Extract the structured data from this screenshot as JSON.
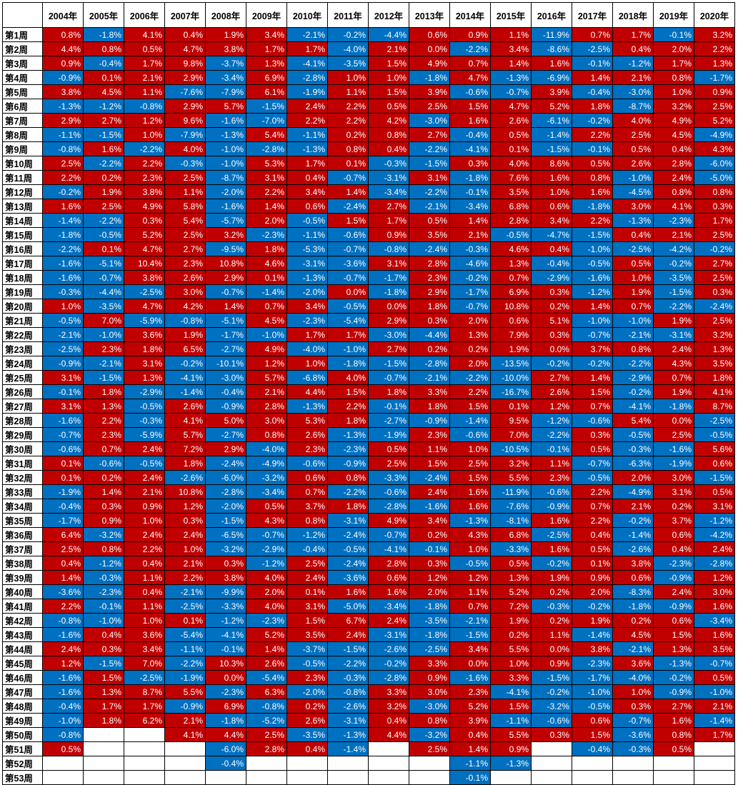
{
  "colors": {
    "positive": "#c00000",
    "negative": "#0070c0",
    "empty": "#ffffff"
  },
  "corner_label": "",
  "years": [
    "2004年",
    "2005年",
    "2006年",
    "2007年",
    "2008年",
    "2009年",
    "2010年",
    "2011年",
    "2012年",
    "2013年",
    "2014年",
    "2015年",
    "2016年",
    "2017年",
    "2018年",
    "2019年",
    "2020年"
  ],
  "weeks": [
    "第1周",
    "第2周",
    "第3周",
    "第4周",
    "第5周",
    "第6周",
    "第7周",
    "第8周",
    "第9周",
    "第10周",
    "第11周",
    "第12周",
    "第13周",
    "第14周",
    "第15周",
    "第16周",
    "第17周",
    "第18周",
    "第19周",
    "第20周",
    "第21周",
    "第22周",
    "第23周",
    "第24周",
    "第25周",
    "第26周",
    "第27周",
    "第28周",
    "第29周",
    "第30周",
    "第31周",
    "第32周",
    "第33周",
    "第34周",
    "第35周",
    "第36周",
    "第37周",
    "第38周",
    "第39周",
    "第40周",
    "第41周",
    "第42周",
    "第43周",
    "第44周",
    "第45周",
    "第46周",
    "第47周",
    "第48周",
    "第49周",
    "第50周",
    "第51周",
    "第52周",
    "第53周"
  ],
  "rows": [
    [
      "0.8%",
      "-1.8%",
      "4.1%",
      "0.4%",
      "1.9%",
      "3.4%",
      "-2.1%",
      "-0.2%",
      "-4.4%",
      "0.6%",
      "0.9%",
      "1.1%",
      "-11.9%",
      "0.7%",
      "1.7%",
      "-0.1%",
      "3.2%"
    ],
    [
      "4.4%",
      "0.8%",
      "0.5%",
      "4.7%",
      "3.8%",
      "1.7%",
      "1.7%",
      "-4.0%",
      "2.1%",
      "0.0%",
      "-2.2%",
      "3.4%",
      "-8.6%",
      "-2.5%",
      "0.4%",
      "2.0%",
      "2.2%"
    ],
    [
      "0.9%",
      "-0.4%",
      "1.7%",
      "9.8%",
      "-3.7%",
      "1.3%",
      "-4.1%",
      "-3.5%",
      "1.5%",
      "4.9%",
      "0.7%",
      "1.4%",
      "1.6%",
      "-0.1%",
      "-1.2%",
      "1.7%",
      "1.3%"
    ],
    [
      "-0.9%",
      "0.1%",
      "2.1%",
      "2.9%",
      "-3.4%",
      "6.9%",
      "-2.8%",
      "1.0%",
      "1.0%",
      "-1.8%",
      "4.7%",
      "-1.3%",
      "-6.9%",
      "1.4%",
      "2.1%",
      "0.8%",
      "-1.7%"
    ],
    [
      "3.8%",
      "4.5%",
      "1.1%",
      "-7.6%",
      "-7.9%",
      "6.1%",
      "-1.9%",
      "1.1%",
      "1.5%",
      "3.9%",
      "-0.6%",
      "-0.7%",
      "3.9%",
      "-0.4%",
      "-3.0%",
      "1.0%",
      "0.9%"
    ],
    [
      "-1.3%",
      "-1.2%",
      "-0.8%",
      "2.9%",
      "5.7%",
      "-1.5%",
      "2.4%",
      "2.2%",
      "0.5%",
      "2.5%",
      "1.5%",
      "4.7%",
      "5.2%",
      "1.8%",
      "-8.7%",
      "3.2%",
      "2.5%"
    ],
    [
      "2.9%",
      "2.7%",
      "1.2%",
      "9.6%",
      "-1.6%",
      "-7.0%",
      "2.2%",
      "2.2%",
      "4.2%",
      "-3.0%",
      "1.6%",
      "2.6%",
      "-6.1%",
      "-0.2%",
      "4.0%",
      "4.9%",
      "5.2%"
    ],
    [
      "-1.1%",
      "-1.5%",
      "1.0%",
      "-7.9%",
      "-1.3%",
      "5.4%",
      "-1.1%",
      "0.2%",
      "0.8%",
      "2.7%",
      "-0.4%",
      "0.5%",
      "-1.4%",
      "2.2%",
      "2.5%",
      "4.5%",
      "-4.9%"
    ],
    [
      "-0.8%",
      "1.6%",
      "-2.2%",
      "4.0%",
      "-1.0%",
      "-2.8%",
      "-1.3%",
      "0.8%",
      "0.4%",
      "-2.2%",
      "-4.1%",
      "0.1%",
      "-1.5%",
      "-0.1%",
      "0.5%",
      "0.4%",
      "4.3%"
    ],
    [
      "2.5%",
      "-2.2%",
      "2.2%",
      "-0.3%",
      "-1.0%",
      "5.3%",
      "1.7%",
      "0.1%",
      "-0.3%",
      "-1.5%",
      "0.3%",
      "4.0%",
      "8.6%",
      "0.5%",
      "2.6%",
      "2.8%",
      "-6.0%"
    ],
    [
      "2.2%",
      "0.2%",
      "2.3%",
      "2.5%",
      "-8.7%",
      "3.1%",
      "0.4%",
      "-0.7%",
      "-3.1%",
      "3.1%",
      "-1.8%",
      "7.6%",
      "1.6%",
      "0.8%",
      "-1.0%",
      "2.4%",
      "-5.0%"
    ],
    [
      "-0.2%",
      "1.9%",
      "3.8%",
      "1.1%",
      "-2.0%",
      "2.2%",
      "3.4%",
      "1.4%",
      "-3.4%",
      "-2.2%",
      "-0.1%",
      "3.5%",
      "1.0%",
      "1.6%",
      "-4.5%",
      "0.8%",
      "0.8%"
    ],
    [
      "1.6%",
      "2.5%",
      "4.9%",
      "5.8%",
      "-1.6%",
      "1.4%",
      "0.6%",
      "-2.4%",
      "2.7%",
      "-2.1%",
      "-3.4%",
      "6.8%",
      "0.6%",
      "-1.8%",
      "3.0%",
      "4.1%",
      "0.3%"
    ],
    [
      "-1.4%",
      "-2.2%",
      "0.3%",
      "5.4%",
      "-5.7%",
      "2.0%",
      "-0.5%",
      "1.5%",
      "1.7%",
      "0.5%",
      "1.4%",
      "2.8%",
      "3.4%",
      "2.2%",
      "-1.3%",
      "-2.3%",
      "1.7%"
    ],
    [
      "-1.8%",
      "-0.5%",
      "5.2%",
      "2.5%",
      "3.2%",
      "-2.3%",
      "-1.1%",
      "-0.6%",
      "0.9%",
      "3.5%",
      "2.1%",
      "-0.5%",
      "-4.7%",
      "-1.5%",
      "0.4%",
      "2.1%",
      "2.5%"
    ],
    [
      "-2.2%",
      "0.1%",
      "4.7%",
      "2.7%",
      "-9.5%",
      "1.8%",
      "-5.3%",
      "-0.7%",
      "-0.8%",
      "-2.4%",
      "-0.3%",
      "4.6%",
      "0.4%",
      "-1.0%",
      "-2.5%",
      "-4.2%",
      "-0.2%"
    ],
    [
      "-1.6%",
      "-5.1%",
      "10.4%",
      "2.3%",
      "10.8%",
      "4.6%",
      "-3.1%",
      "-3.6%",
      "3.1%",
      "2.8%",
      "-4.6%",
      "1.3%",
      "-0.4%",
      "-0.5%",
      "0.5%",
      "-0.2%",
      "2.7%"
    ],
    [
      "-1.6%",
      "-0.7%",
      "3.8%",
      "2.6%",
      "2.9%",
      "0.1%",
      "-1.3%",
      "-0.7%",
      "-1.7%",
      "2.3%",
      "-0.2%",
      "0.7%",
      "-2.9%",
      "-1.6%",
      "1.0%",
      "-3.5%",
      "2.5%"
    ],
    [
      "-0.3%",
      "-4.4%",
      "-2.5%",
      "3.0%",
      "-0.7%",
      "-1.4%",
      "-2.0%",
      "0.0%",
      "-1.8%",
      "2.9%",
      "-1.7%",
      "6.9%",
      "0.3%",
      "-1.2%",
      "1.9%",
      "-1.5%",
      "0.3%"
    ],
    [
      "1.0%",
      "-3.5%",
      "4.7%",
      "4.2%",
      "1.4%",
      "0.7%",
      "3.4%",
      "-0.5%",
      "0.0%",
      "1.8%",
      "-0.7%",
      "10.8%",
      "0.2%",
      "1.4%",
      "0.7%",
      "-2.2%",
      "-2.4%"
    ],
    [
      "-0.5%",
      "7.0%",
      "-5.9%",
      "-0.8%",
      "-5.1%",
      "4.5%",
      "-2.3%",
      "-5.4%",
      "2.9%",
      "0.3%",
      "2.0%",
      "0.6%",
      "5.1%",
      "-1.0%",
      "-1.0%",
      "1.9%",
      "2.5%"
    ],
    [
      "-2.1%",
      "-1.0%",
      "3.6%",
      "1.9%",
      "-1.7%",
      "-1.0%",
      "1.7%",
      "1.7%",
      "-3.0%",
      "-4.4%",
      "1.3%",
      "7.9%",
      "0.3%",
      "-0.7%",
      "-2.1%",
      "-3.1%",
      "3.2%"
    ],
    [
      "-2.5%",
      "2.3%",
      "1.8%",
      "6.5%",
      "-2.7%",
      "4.9%",
      "-4.0%",
      "-1.0%",
      "2.7%",
      "0.2%",
      "0.2%",
      "1.9%",
      "0.0%",
      "3.7%",
      "0.8%",
      "2.4%",
      "1.3%"
    ],
    [
      "-0.9%",
      "-2.1%",
      "3.1%",
      "-0.2%",
      "-10.1%",
      "1.2%",
      "1.0%",
      "-1.8%",
      "-1.5%",
      "-2.8%",
      "2.0%",
      "-13.5%",
      "-0.2%",
      "-0.2%",
      "-2.2%",
      "4.3%",
      "3.5%"
    ],
    [
      "3.1%",
      "-1.5%",
      "1.3%",
      "-4.1%",
      "-3.0%",
      "5.7%",
      "-6.8%",
      "4.0%",
      "-0.7%",
      "-2.1%",
      "-2.2%",
      "-10.0%",
      "2.7%",
      "1.4%",
      "-2.9%",
      "0.7%",
      "1.8%"
    ],
    [
      "-0.1%",
      "1.8%",
      "-2.9%",
      "-1.4%",
      "-0.4%",
      "2.1%",
      "4.4%",
      "1.5%",
      "1.8%",
      "3.3%",
      "2.2%",
      "-16.7%",
      "2.6%",
      "1.5%",
      "-0.2%",
      "1.9%",
      "4.1%"
    ],
    [
      "3.1%",
      "1.3%",
      "-0.5%",
      "2.6%",
      "-0.9%",
      "2.8%",
      "-1.3%",
      "2.2%",
      "-0.1%",
      "1.8%",
      "1.5%",
      "0.1%",
      "1.2%",
      "0.7%",
      "-4.1%",
      "-1.8%",
      "8.7%"
    ],
    [
      "-1.6%",
      "2.2%",
      "-0.3%",
      "4.1%",
      "5.0%",
      "3.0%",
      "5.3%",
      "1.8%",
      "-2.7%",
      "-0.9%",
      "-1.4%",
      "9.5%",
      "-1.2%",
      "-0.6%",
      "5.4%",
      "0.0%",
      "-2.5%"
    ],
    [
      "-0.7%",
      "2.3%",
      "-5.9%",
      "5.7%",
      "-2.7%",
      "0.8%",
      "2.6%",
      "-1.3%",
      "-1.9%",
      "2.3%",
      "-0.6%",
      "7.0%",
      "-2.2%",
      "0.3%",
      "-0.5%",
      "2.5%",
      "-0.5%"
    ],
    [
      "-0.6%",
      "0.7%",
      "2.4%",
      "7.2%",
      "2.9%",
      "-4.0%",
      "2.3%",
      "-2.3%",
      "0.5%",
      "1.1%",
      "1.0%",
      "-10.5%",
      "-0.1%",
      "0.5%",
      "-0.3%",
      "-1.6%",
      "5.6%"
    ],
    [
      "0.1%",
      "-0.6%",
      "-0.5%",
      "1.8%",
      "-2.4%",
      "-4.9%",
      "-0.6%",
      "-0.9%",
      "2.5%",
      "1.5%",
      "2.5%",
      "3.2%",
      "1.1%",
      "-0.7%",
      "-6.3%",
      "-1.9%",
      "0.6%"
    ],
    [
      "0.1%",
      "0.2%",
      "2.4%",
      "-2.6%",
      "-6.0%",
      "-3.2%",
      "0.6%",
      "0.8%",
      "-3.3%",
      "-2.4%",
      "1.5%",
      "5.5%",
      "2.3%",
      "-0.5%",
      "2.0%",
      "3.0%",
      "-1.5%"
    ],
    [
      "-1.9%",
      "1.4%",
      "2.1%",
      "10.8%",
      "-2.8%",
      "-3.4%",
      "0.7%",
      "-2.2%",
      "-0.6%",
      "2.4%",
      "1.6%",
      "-11.9%",
      "-0.6%",
      "2.2%",
      "-4.9%",
      "3.1%",
      "0.5%"
    ],
    [
      "-0.4%",
      "0.3%",
      "0.9%",
      "1.2%",
      "-2.0%",
      "0.5%",
      "3.7%",
      "1.8%",
      "-2.8%",
      "-1.6%",
      "1.6%",
      "-7.6%",
      "-0.9%",
      "0.7%",
      "2.1%",
      "0.2%",
      "3.1%"
    ],
    [
      "-1.7%",
      "0.9%",
      "1.0%",
      "0.3%",
      "-1.5%",
      "4.3%",
      "0.8%",
      "-3.1%",
      "4.9%",
      "3.4%",
      "-1.3%",
      "-8.1%",
      "1.6%",
      "2.2%",
      "-0.2%",
      "3.7%",
      "-1.2%"
    ],
    [
      "6.4%",
      "-3.2%",
      "2.4%",
      "2.4%",
      "-6.5%",
      "-0.7%",
      "-1.2%",
      "-2.4%",
      "-0.7%",
      "0.2%",
      "4.3%",
      "6.8%",
      "-2.5%",
      "0.4%",
      "-1.4%",
      "0.6%",
      "-4.2%"
    ],
    [
      "2.5%",
      "0.8%",
      "2.2%",
      "1.0%",
      "-3.2%",
      "-2.9%",
      "-0.4%",
      "-0.5%",
      "-4.1%",
      "-0.1%",
      "1.0%",
      "-3.3%",
      "1.6%",
      "0.5%",
      "-2.6%",
      "0.4%",
      "2.4%"
    ],
    [
      "0.4%",
      "-1.2%",
      "0.4%",
      "2.1%",
      "0.3%",
      "-1.2%",
      "2.5%",
      "-2.4%",
      "2.8%",
      "0.3%",
      "-0.5%",
      "0.5%",
      "-0.2%",
      "0.1%",
      "3.8%",
      "-2.3%",
      "-2.8%"
    ],
    [
      "1.4%",
      "-0.3%",
      "1.1%",
      "2.2%",
      "3.8%",
      "4.0%",
      "2.4%",
      "-3.6%",
      "0.6%",
      "1.2%",
      "1.2%",
      "1.3%",
      "1.9%",
      "0.9%",
      "0.6%",
      "-0.9%",
      "1.2%"
    ],
    [
      "-3.6%",
      "-2.3%",
      "0.4%",
      "-2.1%",
      "-9.9%",
      "2.0%",
      "0.1%",
      "1.6%",
      "1.6%",
      "2.0%",
      "1.1%",
      "5.2%",
      "0.2%",
      "2.0%",
      "-8.3%",
      "2.4%",
      "3.0%"
    ],
    [
      "2.2%",
      "-0.1%",
      "1.1%",
      "-2.5%",
      "-3.3%",
      "4.0%",
      "3.1%",
      "-5.0%",
      "-3.4%",
      "-1.8%",
      "0.7%",
      "7.2%",
      "-0.3%",
      "-0.2%",
      "-1.8%",
      "-0.9%",
      "1.6%"
    ],
    [
      "-0.8%",
      "-1.0%",
      "1.0%",
      "0.1%",
      "-1.2%",
      "-2.3%",
      "1.5%",
      "6.7%",
      "2.4%",
      "-3.5%",
      "-2.1%",
      "1.9%",
      "0.2%",
      "1.9%",
      "0.2%",
      "0.6%",
      "-3.4%"
    ],
    [
      "-1.6%",
      "0.4%",
      "3.6%",
      "-5.4%",
      "-4.1%",
      "5.2%",
      "3.5%",
      "2.4%",
      "-3.1%",
      "-1.8%",
      "-1.5%",
      "0.2%",
      "1.1%",
      "-1.4%",
      "4.5%",
      "1.5%",
      "1.6%"
    ],
    [
      "2.4%",
      "0.3%",
      "3.4%",
      "-1.1%",
      "-0.1%",
      "1.4%",
      "-3.7%",
      "-1.5%",
      "-2.6%",
      "-2.5%",
      "3.4%",
      "5.5%",
      "0.0%",
      "3.8%",
      "-2.1%",
      "1.3%",
      "3.5%"
    ],
    [
      "1.2%",
      "-1.5%",
      "7.0%",
      "-2.2%",
      "10.3%",
      "2.6%",
      "-0.5%",
      "-2.2%",
      "-0.2%",
      "3.3%",
      "0.0%",
      "1.0%",
      "0.9%",
      "-2.3%",
      "3.6%",
      "-1.3%",
      "-0.7%"
    ],
    [
      "-1.6%",
      "1.5%",
      "-2.5%",
      "-1.9%",
      "0.0%",
      "-5.4%",
      "2.3%",
      "-0.3%",
      "-2.8%",
      "0.9%",
      "-1.6%",
      "3.3%",
      "-1.5%",
      "-1.7%",
      "-4.0%",
      "-0.2%",
      "0.5%"
    ],
    [
      "-1.6%",
      "1.3%",
      "8.7%",
      "5.5%",
      "-2.3%",
      "6.3%",
      "-2.0%",
      "-0.8%",
      "3.3%",
      "3.0%",
      "2.3%",
      "-4.1%",
      "-0.2%",
      "-1.0%",
      "1.0%",
      "-0.9%",
      "-1.0%"
    ],
    [
      "-0.4%",
      "1.7%",
      "1.7%",
      "-0.9%",
      "6.9%",
      "-0.8%",
      "0.2%",
      "-2.6%",
      "3.2%",
      "-3.0%",
      "5.2%",
      "1.5%",
      "-3.2%",
      "-0.5%",
      "0.3%",
      "2.7%",
      "2.1%"
    ],
    [
      "-1.0%",
      "1.8%",
      "6.2%",
      "2.1%",
      "-1.8%",
      "-5.2%",
      "2.6%",
      "-3.1%",
      "0.4%",
      "0.8%",
      "3.9%",
      "-1.1%",
      "-0.6%",
      "0.6%",
      "-0.7%",
      "1.6%",
      "-1.4%"
    ],
    [
      "-0.8%",
      "",
      "",
      "4.1%",
      "4.4%",
      "2.5%",
      "-3.5%",
      "-1.3%",
      "4.4%",
      "-3.2%",
      "0.4%",
      "5.5%",
      "0.3%",
      "1.5%",
      "-3.6%",
      "0.8%",
      "1.7%"
    ],
    [
      "0.5%",
      "",
      "",
      "",
      "-6.0%",
      "2.8%",
      "0.4%",
      "-1.4%",
      "",
      "2.5%",
      "1.4%",
      "0.9%",
      "",
      "-0.4%",
      "-0.3%",
      "0.5%",
      ""
    ],
    [
      "",
      "",
      "",
      "",
      "-0.4%",
      "",
      "",
      "",
      "",
      "",
      "-1.1%",
      "-1.3%",
      "",
      "",
      "",
      "",
      ""
    ],
    [
      "",
      "",
      "",
      "",
      "",
      "",
      "",
      "",
      "",
      "",
      "-0.1%",
      "",
      "",
      "",
      "",
      "",
      ""
    ]
  ]
}
